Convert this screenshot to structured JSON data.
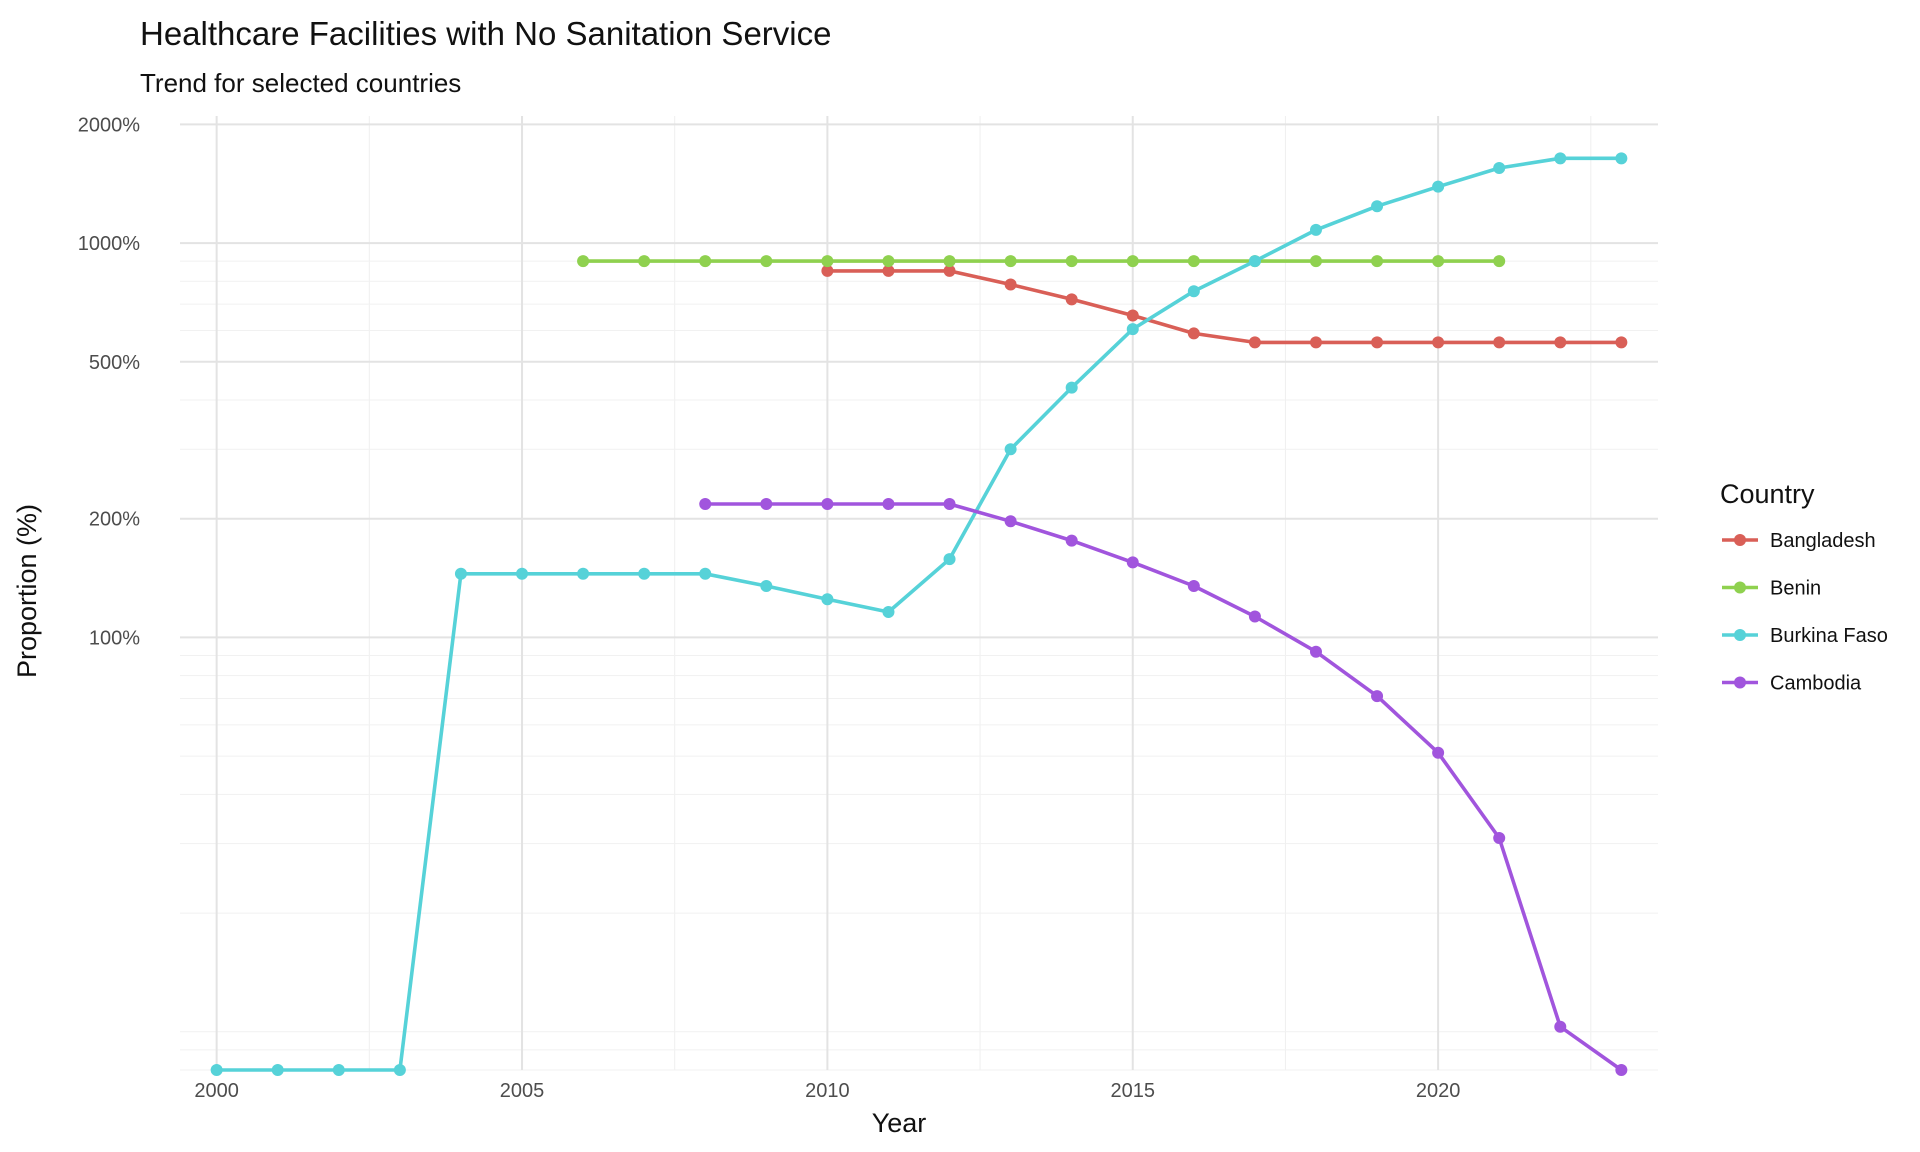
{
  "chart_data": {
    "type": "line",
    "title": "Healthcare Facilities with No Sanitation Service",
    "subtitle": "Trend for selected countries",
    "xlabel": "Year",
    "ylabel": "Proportion (%)",
    "x_scale": "linear",
    "y_scale": "log",
    "xlim": [
      1999.4,
      2023.6
    ],
    "ylim": [
      8,
      2100
    ],
    "x_ticks": [
      2000,
      2005,
      2010,
      2015,
      2020
    ],
    "x_tick_labels": [
      "2000",
      "2005",
      "2010",
      "2015",
      "2020"
    ],
    "y_ticks": [
      100,
      200,
      500,
      1000,
      2000
    ],
    "y_tick_labels": [
      "100%",
      "200%",
      "500%",
      "1000%",
      "2000%"
    ],
    "grid": true,
    "legend": {
      "title": "Country",
      "position": "right"
    },
    "series": [
      {
        "name": "Bangladesh",
        "color": "#d95f57",
        "x": [
          2010,
          2011,
          2012,
          2013,
          2014,
          2015,
          2016,
          2017,
          2018,
          2019,
          2020,
          2021,
          2022,
          2023
        ],
        "y": [
          850,
          850,
          850,
          785,
          720,
          655,
          590,
          560,
          560,
          560,
          560,
          560,
          560,
          560
        ]
      },
      {
        "name": "Benin",
        "color": "#8fd14f",
        "x": [
          2006,
          2007,
          2008,
          2009,
          2010,
          2011,
          2012,
          2013,
          2014,
          2015,
          2016,
          2017,
          2018,
          2019,
          2020,
          2021
        ],
        "y": [
          900,
          900,
          900,
          900,
          900,
          900,
          900,
          900,
          900,
          900,
          900,
          900,
          900,
          900,
          900,
          900
        ]
      },
      {
        "name": "Burkina Faso",
        "color": "#56d2d8",
        "x": [
          2000,
          2001,
          2002,
          2003,
          2004,
          2005,
          2006,
          2007,
          2008,
          2009,
          2010,
          2011,
          2012,
          2013,
          2014,
          2015,
          2016,
          2017,
          2018,
          2019,
          2020,
          2021,
          2022,
          2023
        ],
        "y": [
          8,
          8,
          8,
          8,
          145,
          145,
          145,
          145,
          145,
          135,
          125,
          116,
          158,
          300,
          430,
          605,
          755,
          900,
          1080,
          1240,
          1390,
          1550,
          1640,
          1640
        ]
      },
      {
        "name": "Cambodia",
        "color": "#a155dd",
        "x": [
          2008,
          2009,
          2010,
          2011,
          2012,
          2013,
          2014,
          2015,
          2016,
          2017,
          2018,
          2019,
          2020,
          2021,
          2022,
          2023
        ],
        "y": [
          218,
          218,
          218,
          218,
          218,
          197,
          176,
          155,
          135,
          113,
          92,
          71,
          51,
          31,
          10.3,
          8
        ]
      }
    ]
  }
}
